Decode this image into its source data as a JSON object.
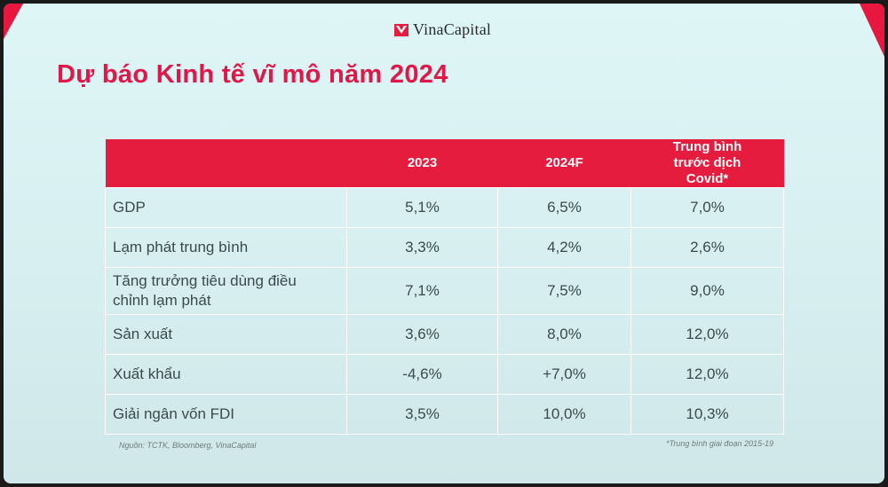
{
  "brand": {
    "name": "VinaCapital",
    "accent": "#e61c3e"
  },
  "title": "Dự báo Kinh tế vĩ mô năm 2024",
  "table": {
    "headers": [
      "",
      "2023",
      "2024F",
      "Trung bình trước dịch Covid*"
    ],
    "rows": [
      {
        "label": "GDP",
        "y2023": "5,1%",
        "y2024": "6,5%",
        "pre_covid": "7,0%"
      },
      {
        "label": "Lạm phát trung bình",
        "y2023": "3,3%",
        "y2024": "4,2%",
        "pre_covid": "2,6%"
      },
      {
        "label": "Tăng trưởng tiêu dùng điều chỉnh lạm phát",
        "y2023": "7,1%",
        "y2024": "7,5%",
        "pre_covid": "9,0%"
      },
      {
        "label": "Sản xuất",
        "y2023": "3,6%",
        "y2024": "8,0%",
        "pre_covid": "12,0%"
      },
      {
        "label": "Xuất khẩu",
        "y2023": "-4,6%",
        "y2024": "+7,0%",
        "pre_covid": "12,0%"
      },
      {
        "label": "Giải ngân vốn FDI",
        "y2023": "3,5%",
        "y2024": "10,0%",
        "pre_covid": "10,3%"
      }
    ]
  },
  "source": "Nguồn: TCTK, Bloomberg, VinaCapital",
  "footnote": "*Trung bình giai đoạn 2015-19"
}
